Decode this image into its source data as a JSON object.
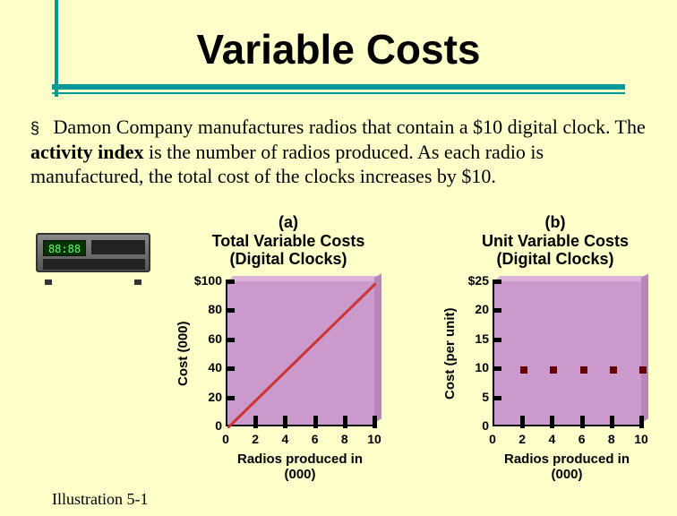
{
  "title": "Variable Costs",
  "body": {
    "bullet": "§",
    "text_before_bold": "Damon Company manufactures radios that contain a $10 digital clock. The ",
    "bold": "activity index",
    "text_after_bold": " is the number of radios produced.  As each radio is manufactured, the total cost of the clocks increases by $10."
  },
  "radio_display": "88:88",
  "chart_a": {
    "title_line1": "(a)",
    "title_line2": "Total Variable Costs",
    "title_line3": "(Digital Clocks)",
    "ylabel": "Cost (000)",
    "xlabel": "Radios produced in (000)",
    "yticks": [
      {
        "label": "$100",
        "value": 100
      },
      {
        "label": "80",
        "value": 80
      },
      {
        "label": "60",
        "value": 60
      },
      {
        "label": "40",
        "value": 40
      },
      {
        "label": "20",
        "value": 20
      },
      {
        "label": "0",
        "value": 0
      }
    ],
    "xticks": [
      {
        "label": "0",
        "value": 0
      },
      {
        "label": "2",
        "value": 2
      },
      {
        "label": "4",
        "value": 4
      },
      {
        "label": "6",
        "value": 6
      },
      {
        "label": "8",
        "value": 8
      },
      {
        "label": "10",
        "value": 10
      }
    ],
    "ylim": [
      0,
      100
    ],
    "xlim": [
      0,
      10
    ],
    "line": [
      [
        0,
        0
      ],
      [
        10,
        100
      ]
    ],
    "line_color": "#cc3333",
    "plot_bg": "#cc99cc"
  },
  "chart_b": {
    "title_line1": "(b)",
    "title_line2": "Unit Variable Costs",
    "title_line3": "(Digital Clocks)",
    "ylabel": "Cost (per unit)",
    "xlabel": "Radios produced in (000)",
    "yticks": [
      {
        "label": "$25",
        "value": 25
      },
      {
        "label": "20",
        "value": 20
      },
      {
        "label": "15",
        "value": 15
      },
      {
        "label": "10",
        "value": 10
      },
      {
        "label": "5",
        "value": 5
      },
      {
        "label": "0",
        "value": 0
      }
    ],
    "xticks": [
      {
        "label": "0",
        "value": 0
      },
      {
        "label": "2",
        "value": 2
      },
      {
        "label": "4",
        "value": 4
      },
      {
        "label": "6",
        "value": 6
      },
      {
        "label": "8",
        "value": 8
      },
      {
        "label": "10",
        "value": 10
      }
    ],
    "ylim": [
      0,
      25
    ],
    "xlim": [
      0,
      10
    ],
    "points": [
      [
        2,
        10
      ],
      [
        4,
        10
      ],
      [
        6,
        10
      ],
      [
        8,
        10
      ],
      [
        10,
        10
      ]
    ],
    "point_color": "#660000",
    "plot_bg": "#cc99cc"
  },
  "footnote": "Illustration 5-1",
  "colors": {
    "background": "#ffffca",
    "accent": "#009999",
    "plot_bg": "#cc99cc",
    "line": "#cc3333",
    "point": "#660000"
  }
}
